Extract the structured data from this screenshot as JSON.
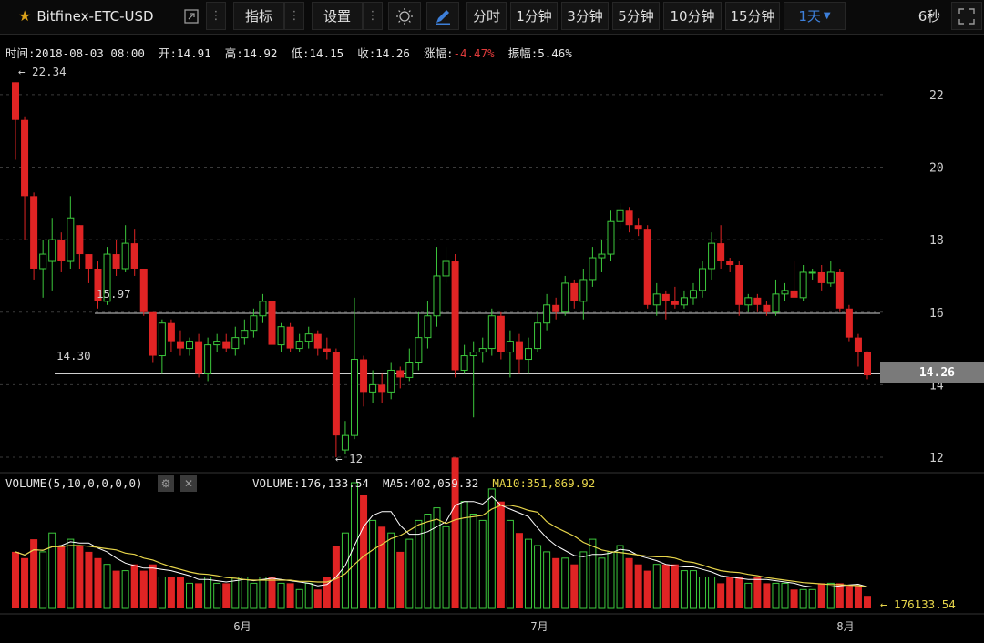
{
  "toolbar": {
    "pair": "Bitfinex-ETC-USD",
    "indicators": "指标",
    "settings": "设置",
    "timeframes": [
      "分时",
      "1分钟",
      "3分钟",
      "5分钟",
      "10分钟",
      "15分钟"
    ],
    "active_timeframe": "1天",
    "refresh": "6秒",
    "icons": [
      "star-icon",
      "external-link-icon",
      "more-icon",
      "theme-sun-icon",
      "pen-icon",
      "fullscreen-icon"
    ]
  },
  "info": {
    "time_label": "时间:",
    "time": "2018-08-03 08:00",
    "open_label": "开:",
    "open": "14.91",
    "high_label": "高:",
    "high": "14.92",
    "low_label": "低:",
    "low": "14.15",
    "close_label": "收:",
    "close": "14.26",
    "change_label": "涨幅:",
    "change": "-4.47%",
    "amp_label": "振幅:",
    "amp": "5.46%"
  },
  "levels": {
    "max_mark": "← 22.34",
    "min_mark": "← 12",
    "line1": "15.97",
    "line2": "14.30",
    "last": "14.26"
  },
  "volume": {
    "label": "VOLUME(5,10,0,0,0,0)",
    "value": "VOLUME:176,133.54",
    "ma5": "MA5:402,059.32",
    "ma10": "MA10:351,869.92",
    "last": "← 176133.54"
  },
  "colors": {
    "up": "#3cc83c",
    "down": "#e02424",
    "ma5": "#ffffff",
    "ma10": "#e6d44a"
  },
  "chart_data": {
    "type": "candlestick",
    "price_axis_ticks": [
      12,
      14,
      16,
      18,
      20,
      22
    ],
    "price_range": [
      11.8,
      22.8
    ],
    "time_axis_labels": [
      "6月",
      "7月",
      "8月"
    ],
    "candles": [
      [
        22.34,
        21.3,
        22.34,
        20.2,
        0.45
      ],
      [
        21.3,
        19.2,
        21.4,
        18.0,
        0.4
      ],
      [
        19.2,
        17.2,
        19.3,
        16.9,
        0.55
      ],
      [
        17.2,
        17.6,
        18.0,
        16.4,
        0.45
      ],
      [
        17.4,
        18.0,
        18.6,
        16.6,
        0.6
      ],
      [
        18.0,
        17.4,
        18.2,
        17.1,
        0.5
      ],
      [
        17.4,
        18.6,
        19.2,
        17.2,
        0.55
      ],
      [
        18.4,
        17.6,
        18.4,
        17.2,
        0.5
      ],
      [
        17.6,
        17.2,
        17.6,
        16.8,
        0.45
      ],
      [
        17.2,
        16.3,
        17.4,
        16.1,
        0.4
      ],
      [
        16.3,
        17.6,
        17.8,
        16.2,
        0.35
      ],
      [
        17.6,
        17.2,
        18.0,
        17.0,
        0.3
      ],
      [
        17.2,
        17.9,
        18.4,
        17.1,
        0.3
      ],
      [
        17.9,
        17.2,
        18.3,
        17.0,
        0.35
      ],
      [
        17.2,
        16.0,
        17.2,
        15.9,
        0.3
      ],
      [
        16.0,
        14.8,
        16.0,
        14.6,
        0.35
      ],
      [
        14.8,
        15.7,
        15.8,
        14.3,
        0.25
      ],
      [
        15.7,
        15.2,
        15.8,
        14.9,
        0.25
      ],
      [
        15.2,
        15.0,
        15.5,
        14.8,
        0.25
      ],
      [
        15.0,
        15.2,
        15.3,
        14.8,
        0.2
      ],
      [
        15.2,
        14.3,
        15.4,
        14.2,
        0.2
      ],
      [
        14.3,
        15.1,
        15.3,
        14.1,
        0.25
      ],
      [
        15.1,
        15.2,
        15.4,
        14.9,
        0.2
      ],
      [
        15.2,
        15.0,
        15.4,
        14.9,
        0.2
      ],
      [
        15.0,
        15.3,
        15.6,
        14.8,
        0.25
      ],
      [
        15.3,
        15.5,
        15.8,
        15.1,
        0.25
      ],
      [
        15.5,
        15.9,
        16.1,
        15.3,
        0.2
      ],
      [
        15.9,
        16.3,
        16.5,
        15.7,
        0.25
      ],
      [
        16.3,
        15.1,
        16.4,
        15.0,
        0.25
      ],
      [
        15.1,
        15.6,
        15.7,
        14.9,
        0.2
      ],
      [
        15.6,
        15.0,
        15.7,
        14.9,
        0.2
      ],
      [
        15.0,
        15.2,
        15.4,
        14.9,
        0.15
      ],
      [
        15.2,
        15.4,
        15.6,
        15.0,
        0.2
      ],
      [
        15.4,
        15.0,
        15.5,
        14.8,
        0.15
      ],
      [
        15.0,
        14.9,
        15.3,
        14.7,
        0.25
      ],
      [
        14.9,
        12.6,
        15.0,
        12.0,
        0.5
      ],
      [
        12.2,
        12.6,
        13.0,
        12.1,
        0.6
      ],
      [
        12.6,
        14.7,
        16.4,
        12.5,
        1.0
      ],
      [
        14.7,
        13.8,
        14.8,
        13.4,
        0.9
      ],
      [
        13.8,
        14.0,
        14.4,
        13.5,
        0.7
      ],
      [
        14.0,
        13.8,
        14.3,
        13.5,
        0.65
      ],
      [
        13.8,
        14.4,
        14.6,
        13.6,
        0.6
      ],
      [
        14.4,
        14.2,
        14.5,
        13.9,
        0.45
      ],
      [
        14.2,
        14.6,
        15.0,
        14.1,
        0.55
      ],
      [
        14.6,
        15.3,
        16.0,
        14.4,
        0.7
      ],
      [
        15.3,
        15.9,
        16.3,
        15.0,
        0.75
      ],
      [
        15.9,
        17.0,
        17.8,
        15.6,
        0.8
      ],
      [
        17.0,
        17.4,
        17.8,
        16.8,
        0.65
      ],
      [
        17.4,
        14.4,
        17.6,
        14.2,
        1.2
      ],
      [
        14.4,
        14.8,
        15.1,
        14.3,
        0.85
      ],
      [
        14.8,
        14.9,
        15.2,
        13.1,
        0.75
      ],
      [
        14.9,
        15.0,
        15.3,
        14.6,
        0.7
      ],
      [
        15.0,
        15.9,
        16.1,
        14.8,
        0.95
      ],
      [
        15.9,
        14.9,
        16.0,
        14.7,
        0.85
      ],
      [
        14.9,
        15.2,
        15.5,
        14.2,
        0.7
      ],
      [
        15.2,
        14.7,
        15.4,
        14.3,
        0.6
      ],
      [
        14.7,
        15.0,
        15.3,
        14.3,
        0.55
      ],
      [
        15.0,
        15.7,
        16.0,
        14.9,
        0.5
      ],
      [
        15.7,
        16.2,
        16.5,
        15.5,
        0.45
      ],
      [
        16.2,
        16.0,
        16.4,
        15.8,
        0.4
      ],
      [
        16.0,
        16.8,
        17.0,
        15.9,
        0.4
      ],
      [
        16.8,
        16.3,
        16.9,
        16.1,
        0.35
      ],
      [
        16.3,
        16.9,
        17.2,
        15.8,
        0.45
      ],
      [
        16.9,
        17.5,
        17.8,
        16.7,
        0.55
      ],
      [
        17.5,
        17.6,
        18.0,
        17.1,
        0.4
      ],
      [
        17.6,
        18.5,
        18.8,
        17.4,
        0.45
      ],
      [
        18.5,
        18.8,
        19.0,
        18.3,
        0.5
      ],
      [
        18.8,
        18.4,
        18.9,
        18.2,
        0.4
      ],
      [
        18.4,
        18.3,
        18.6,
        18.1,
        0.35
      ],
      [
        18.3,
        16.2,
        18.4,
        16.1,
        0.3
      ],
      [
        16.2,
        16.5,
        16.8,
        15.9,
        0.35
      ],
      [
        16.5,
        16.3,
        16.6,
        15.8,
        0.35
      ],
      [
        16.3,
        16.2,
        16.7,
        16.1,
        0.35
      ],
      [
        16.2,
        16.4,
        16.6,
        16.1,
        0.3
      ],
      [
        16.4,
        16.6,
        16.8,
        16.2,
        0.3
      ],
      [
        16.6,
        17.2,
        17.4,
        16.4,
        0.25
      ],
      [
        17.2,
        17.9,
        18.2,
        16.9,
        0.25
      ],
      [
        17.9,
        17.4,
        18.4,
        17.2,
        0.2
      ],
      [
        17.4,
        17.3,
        17.5,
        17.1,
        0.25
      ],
      [
        17.3,
        16.2,
        17.4,
        15.9,
        0.25
      ],
      [
        16.2,
        16.4,
        16.5,
        16.0,
        0.2
      ],
      [
        16.4,
        16.2,
        16.5,
        16.0,
        0.25
      ],
      [
        16.2,
        16.0,
        16.3,
        15.9,
        0.2
      ],
      [
        16.0,
        16.5,
        16.9,
        15.9,
        0.2
      ],
      [
        16.5,
        16.6,
        16.8,
        16.3,
        0.2
      ],
      [
        16.6,
        16.4,
        17.4,
        16.4,
        0.15
      ],
      [
        16.4,
        17.1,
        17.3,
        16.3,
        0.15
      ],
      [
        17.1,
        17.1,
        17.2,
        16.9,
        0.15
      ],
      [
        17.1,
        16.8,
        17.3,
        16.6,
        0.2
      ],
      [
        16.8,
        17.1,
        17.4,
        16.7,
        0.2
      ],
      [
        17.1,
        16.1,
        17.2,
        16.0,
        0.2
      ],
      [
        16.1,
        15.3,
        16.2,
        15.2,
        0.18
      ],
      [
        15.3,
        14.9,
        15.4,
        14.5,
        0.18
      ],
      [
        14.91,
        14.26,
        14.92,
        14.15,
        0.1
      ]
    ],
    "candle_fields": [
      "open",
      "close",
      "high",
      "low",
      "relative_volume"
    ]
  }
}
